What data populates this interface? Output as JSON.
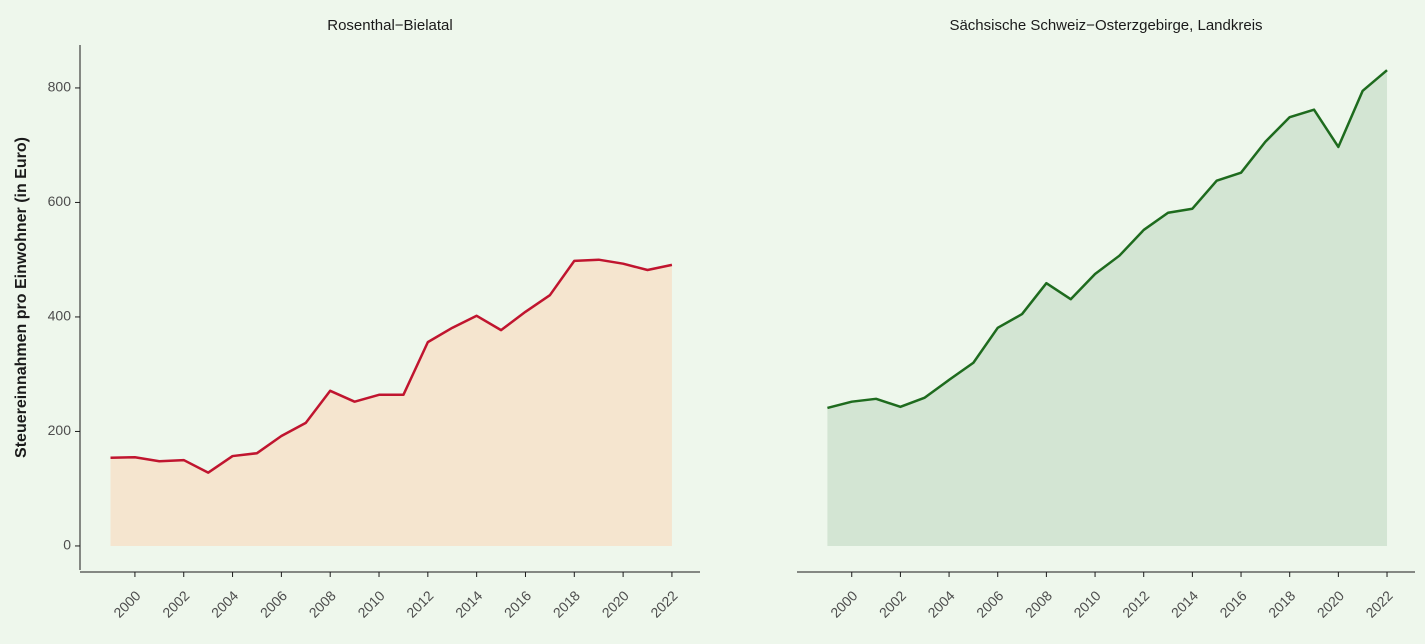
{
  "chart_data": [
    {
      "type": "area",
      "title": "Rosenthal−Bielatal",
      "y_label": "Steuereinnahmen pro Einwohner (in Euro)",
      "x": [
        1999,
        2000,
        2001,
        2002,
        2003,
        2004,
        2005,
        2006,
        2007,
        2008,
        2009,
        2010,
        2011,
        2012,
        2013,
        2014,
        2015,
        2016,
        2017,
        2018,
        2019,
        2020,
        2021,
        2022
      ],
      "values": [
        154,
        155,
        148,
        150,
        128,
        157,
        162,
        192,
        215,
        271,
        252,
        264,
        264,
        356,
        381,
        402,
        377,
        409,
        438,
        498,
        500,
        493,
        482,
        491
      ],
      "color": "#c0152f",
      "fill_color": "#f5e5cf",
      "xlim": [
        1997.75,
        2023.15
      ],
      "xticks": [
        2000,
        2002,
        2004,
        2006,
        2008,
        2010,
        2012,
        2014,
        2016,
        2018,
        2020,
        2022
      ],
      "ylim": [
        -42,
        875
      ],
      "yticks": [
        0,
        200,
        400,
        600,
        800
      ]
    },
    {
      "type": "area",
      "title": "Sächsische Schweiz−Osterzgebirge, Landkreis",
      "x": [
        1999,
        2000,
        2001,
        2002,
        2003,
        2004,
        2005,
        2006,
        2007,
        2008,
        2009,
        2010,
        2011,
        2012,
        2013,
        2014,
        2015,
        2016,
        2017,
        2018,
        2019,
        2020,
        2021,
        2022
      ],
      "values": [
        241,
        252,
        257,
        243,
        259,
        290,
        320,
        381,
        405,
        459,
        431,
        475,
        507,
        552,
        582,
        589,
        638,
        652,
        706,
        749,
        762,
        697,
        795,
        831
      ],
      "color": "#1e6b1e",
      "fill_color": "#d3e5d3",
      "xlim": [
        1997.75,
        2023.15
      ],
      "xticks": [
        2000,
        2002,
        2004,
        2006,
        2008,
        2010,
        2012,
        2014,
        2016,
        2018,
        2020,
        2022
      ],
      "ylim": [
        -42,
        875
      ]
    }
  ]
}
